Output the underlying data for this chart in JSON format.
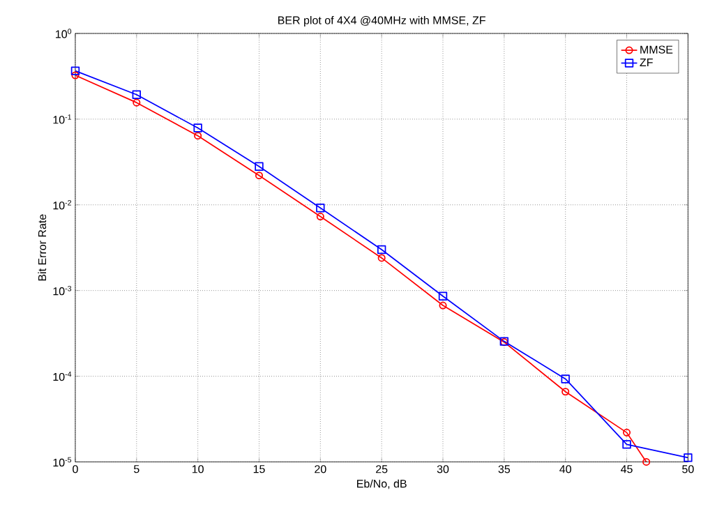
{
  "chart_data": {
    "type": "line",
    "title": "BER plot of 4X4 @40MHz with MMSE, ZF",
    "xlabel": "Eb/No, dB",
    "ylabel": "Bit Error Rate",
    "log": "y",
    "grid": true,
    "legend": "top right",
    "line_style": "solid",
    "xlim": [
      0,
      50
    ],
    "xticks": [
      0,
      5,
      10,
      15,
      20,
      25,
      30,
      35,
      40,
      45,
      50
    ],
    "ylim": [
      1e-05,
      1
    ],
    "yticks": [
      {
        "value": 1e-05,
        "label": "10$^{-5}$"
      },
      {
        "value": 0.0001,
        "label": "10$^{-4}$"
      },
      {
        "value": 0.001,
        "label": "10$^{-3}$"
      },
      {
        "value": 0.01,
        "label": "10$^{-2}$"
      },
      {
        "value": 0.1,
        "label": "10$^{-1}$"
      },
      {
        "value": 1,
        "label": "10$^{0}$"
      }
    ],
    "series": [
      {
        "name": "MMSE",
        "color": "#ff0000",
        "marker": "circle",
        "x": [
          0,
          5,
          10,
          15,
          20,
          25,
          30,
          35,
          40,
          45,
          46.6
        ],
        "values": [
          0.325,
          0.156,
          0.064,
          0.022,
          0.0073,
          0.0024,
          0.00067,
          0.00025,
          6.6e-05,
          2.2e-05,
          1e-05
        ]
      },
      {
        "name": "ZF",
        "color": "#0000ff",
        "marker": "square",
        "x": [
          0,
          5,
          10,
          15,
          20,
          25,
          30,
          35,
          40,
          45,
          50
        ],
        "values": [
          0.366,
          0.193,
          0.079,
          0.028,
          0.0092,
          0.003,
          0.00086,
          0.000255,
          9.3e-05,
          1.6e-05,
          1.12e-05
        ]
      }
    ]
  }
}
